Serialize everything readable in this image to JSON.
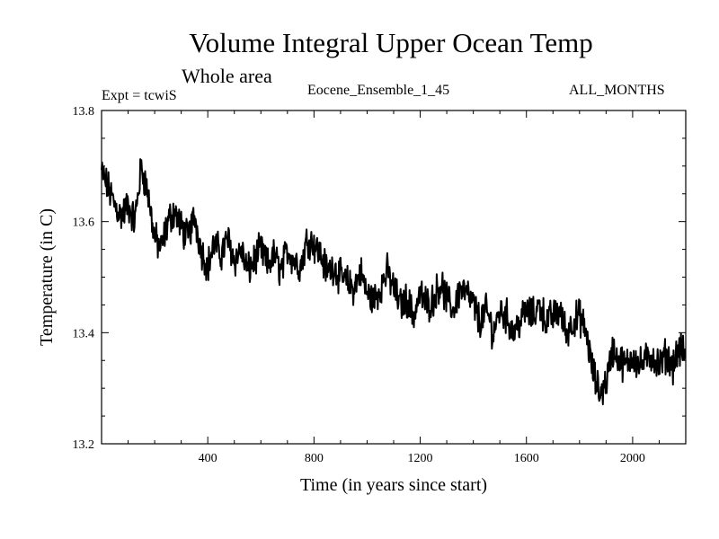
{
  "header": {
    "title": "Volume Integral Upper Ocean Temp",
    "subtitle": "Whole area",
    "left": "Expt = tcwiS",
    "center": "Eocene_Ensemble_1_45",
    "right": "ALL_MONTHS"
  },
  "chart_data": {
    "type": "line",
    "title": "Volume Integral Upper Ocean Temp",
    "subtitle": "Whole area",
    "xlabel": "Time (in years since start)",
    "ylabel": "Temperature (in C)",
    "xlim": [
      0,
      2200
    ],
    "ylim": [
      13.2,
      13.8
    ],
    "xticks": [
      400,
      800,
      1200,
      1600,
      2000
    ],
    "yticks": [
      13.2,
      13.4,
      13.6,
      13.8
    ],
    "xtick_labels": [
      "400",
      "800",
      "1200",
      "1600",
      "2000"
    ],
    "ytick_labels": [
      "13.2",
      "13.4",
      "13.6",
      "13.8"
    ],
    "grid": false,
    "line_color": "#000000",
    "series": [
      {
        "x": [
          0,
          25,
          50,
          75,
          100,
          125,
          150,
          175,
          200,
          225,
          250,
          275,
          300,
          325,
          350,
          375,
          400,
          425,
          450,
          475,
          500,
          525,
          550,
          575,
          600,
          625,
          650,
          675,
          700,
          725,
          750,
          775,
          800,
          825,
          850,
          875,
          900,
          925,
          950,
          975,
          1000,
          1025,
          1050,
          1075,
          1100,
          1125,
          1150,
          1175,
          1200,
          1225,
          1250,
          1275,
          1300,
          1325,
          1350,
          1375,
          1400,
          1425,
          1450,
          1475,
          1500,
          1525,
          1550,
          1575,
          1600,
          1625,
          1650,
          1675,
          1700,
          1725,
          1750,
          1775,
          1800,
          1825,
          1850,
          1875,
          1900,
          1925,
          1950,
          1975,
          2000,
          2025,
          2050,
          2075,
          2100,
          2125,
          2150,
          2175,
          2200
        ],
        "values": [
          13.69,
          13.66,
          13.63,
          13.61,
          13.63,
          13.6,
          13.7,
          13.65,
          13.57,
          13.55,
          13.6,
          13.62,
          13.59,
          13.57,
          13.61,
          13.55,
          13.52,
          13.56,
          13.54,
          13.57,
          13.53,
          13.55,
          13.51,
          13.53,
          13.55,
          13.52,
          13.54,
          13.51,
          13.55,
          13.53,
          13.52,
          13.57,
          13.56,
          13.54,
          13.51,
          13.52,
          13.5,
          13.49,
          13.48,
          13.51,
          13.47,
          13.46,
          13.48,
          13.51,
          13.48,
          13.45,
          13.46,
          13.43,
          13.47,
          13.45,
          13.46,
          13.49,
          13.46,
          13.44,
          13.48,
          13.47,
          13.45,
          13.42,
          13.44,
          13.4,
          13.44,
          13.43,
          13.4,
          13.42,
          13.44,
          13.43,
          13.45,
          13.42,
          13.43,
          13.44,
          13.4,
          13.42,
          13.43,
          13.4,
          13.33,
          13.29,
          13.31,
          13.37,
          13.35,
          13.34,
          13.36,
          13.34,
          13.35,
          13.36,
          13.34,
          13.36,
          13.34,
          13.37,
          13.36
        ]
      }
    ]
  }
}
